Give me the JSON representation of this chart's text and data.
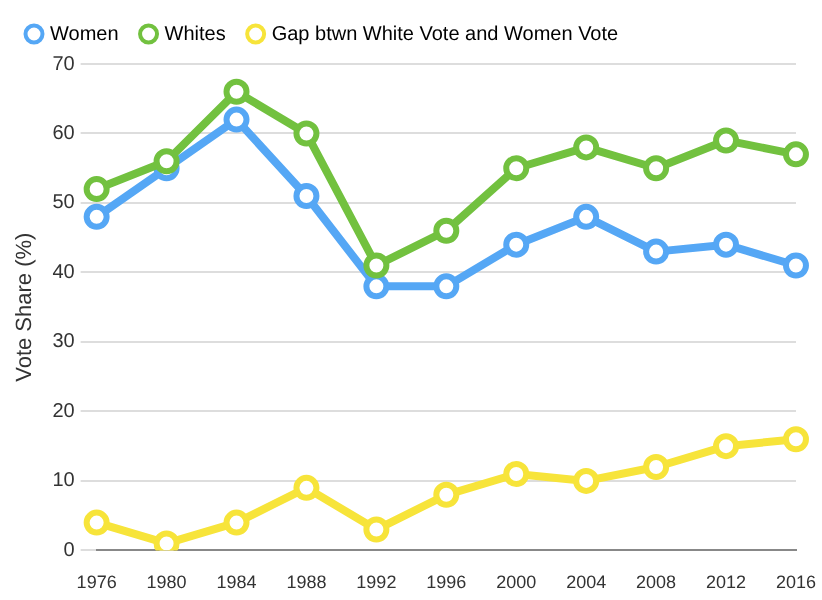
{
  "chart_data": {
    "type": "line",
    "ylabel": "Vote Share (%)",
    "categories": [
      "1976",
      "1980",
      "1984",
      "1988",
      "1992",
      "1996",
      "2000",
      "2004",
      "2008",
      "2012",
      "2016"
    ],
    "series": [
      {
        "name": "Women",
        "color": "#55a7f5",
        "values": [
          48,
          55,
          62,
          51,
          38,
          38,
          44,
          48,
          43,
          44,
          41
        ]
      },
      {
        "name": "Whites",
        "color": "#72c13f",
        "values": [
          52,
          56,
          66,
          60,
          41,
          46,
          55,
          58,
          55,
          59,
          57
        ]
      },
      {
        "name": "Gap btwn White Vote and Women Vote",
        "color": "#f7e43a",
        "values": [
          4,
          1,
          4,
          9,
          3,
          8,
          11,
          10,
          12,
          15,
          16
        ]
      }
    ],
    "ylim": [
      0,
      70
    ],
    "yticks": [
      0,
      10,
      20,
      30,
      40,
      50,
      60,
      70
    ],
    "grid": "y",
    "legend": "top",
    "marker": "circle",
    "line_style": "solid"
  }
}
